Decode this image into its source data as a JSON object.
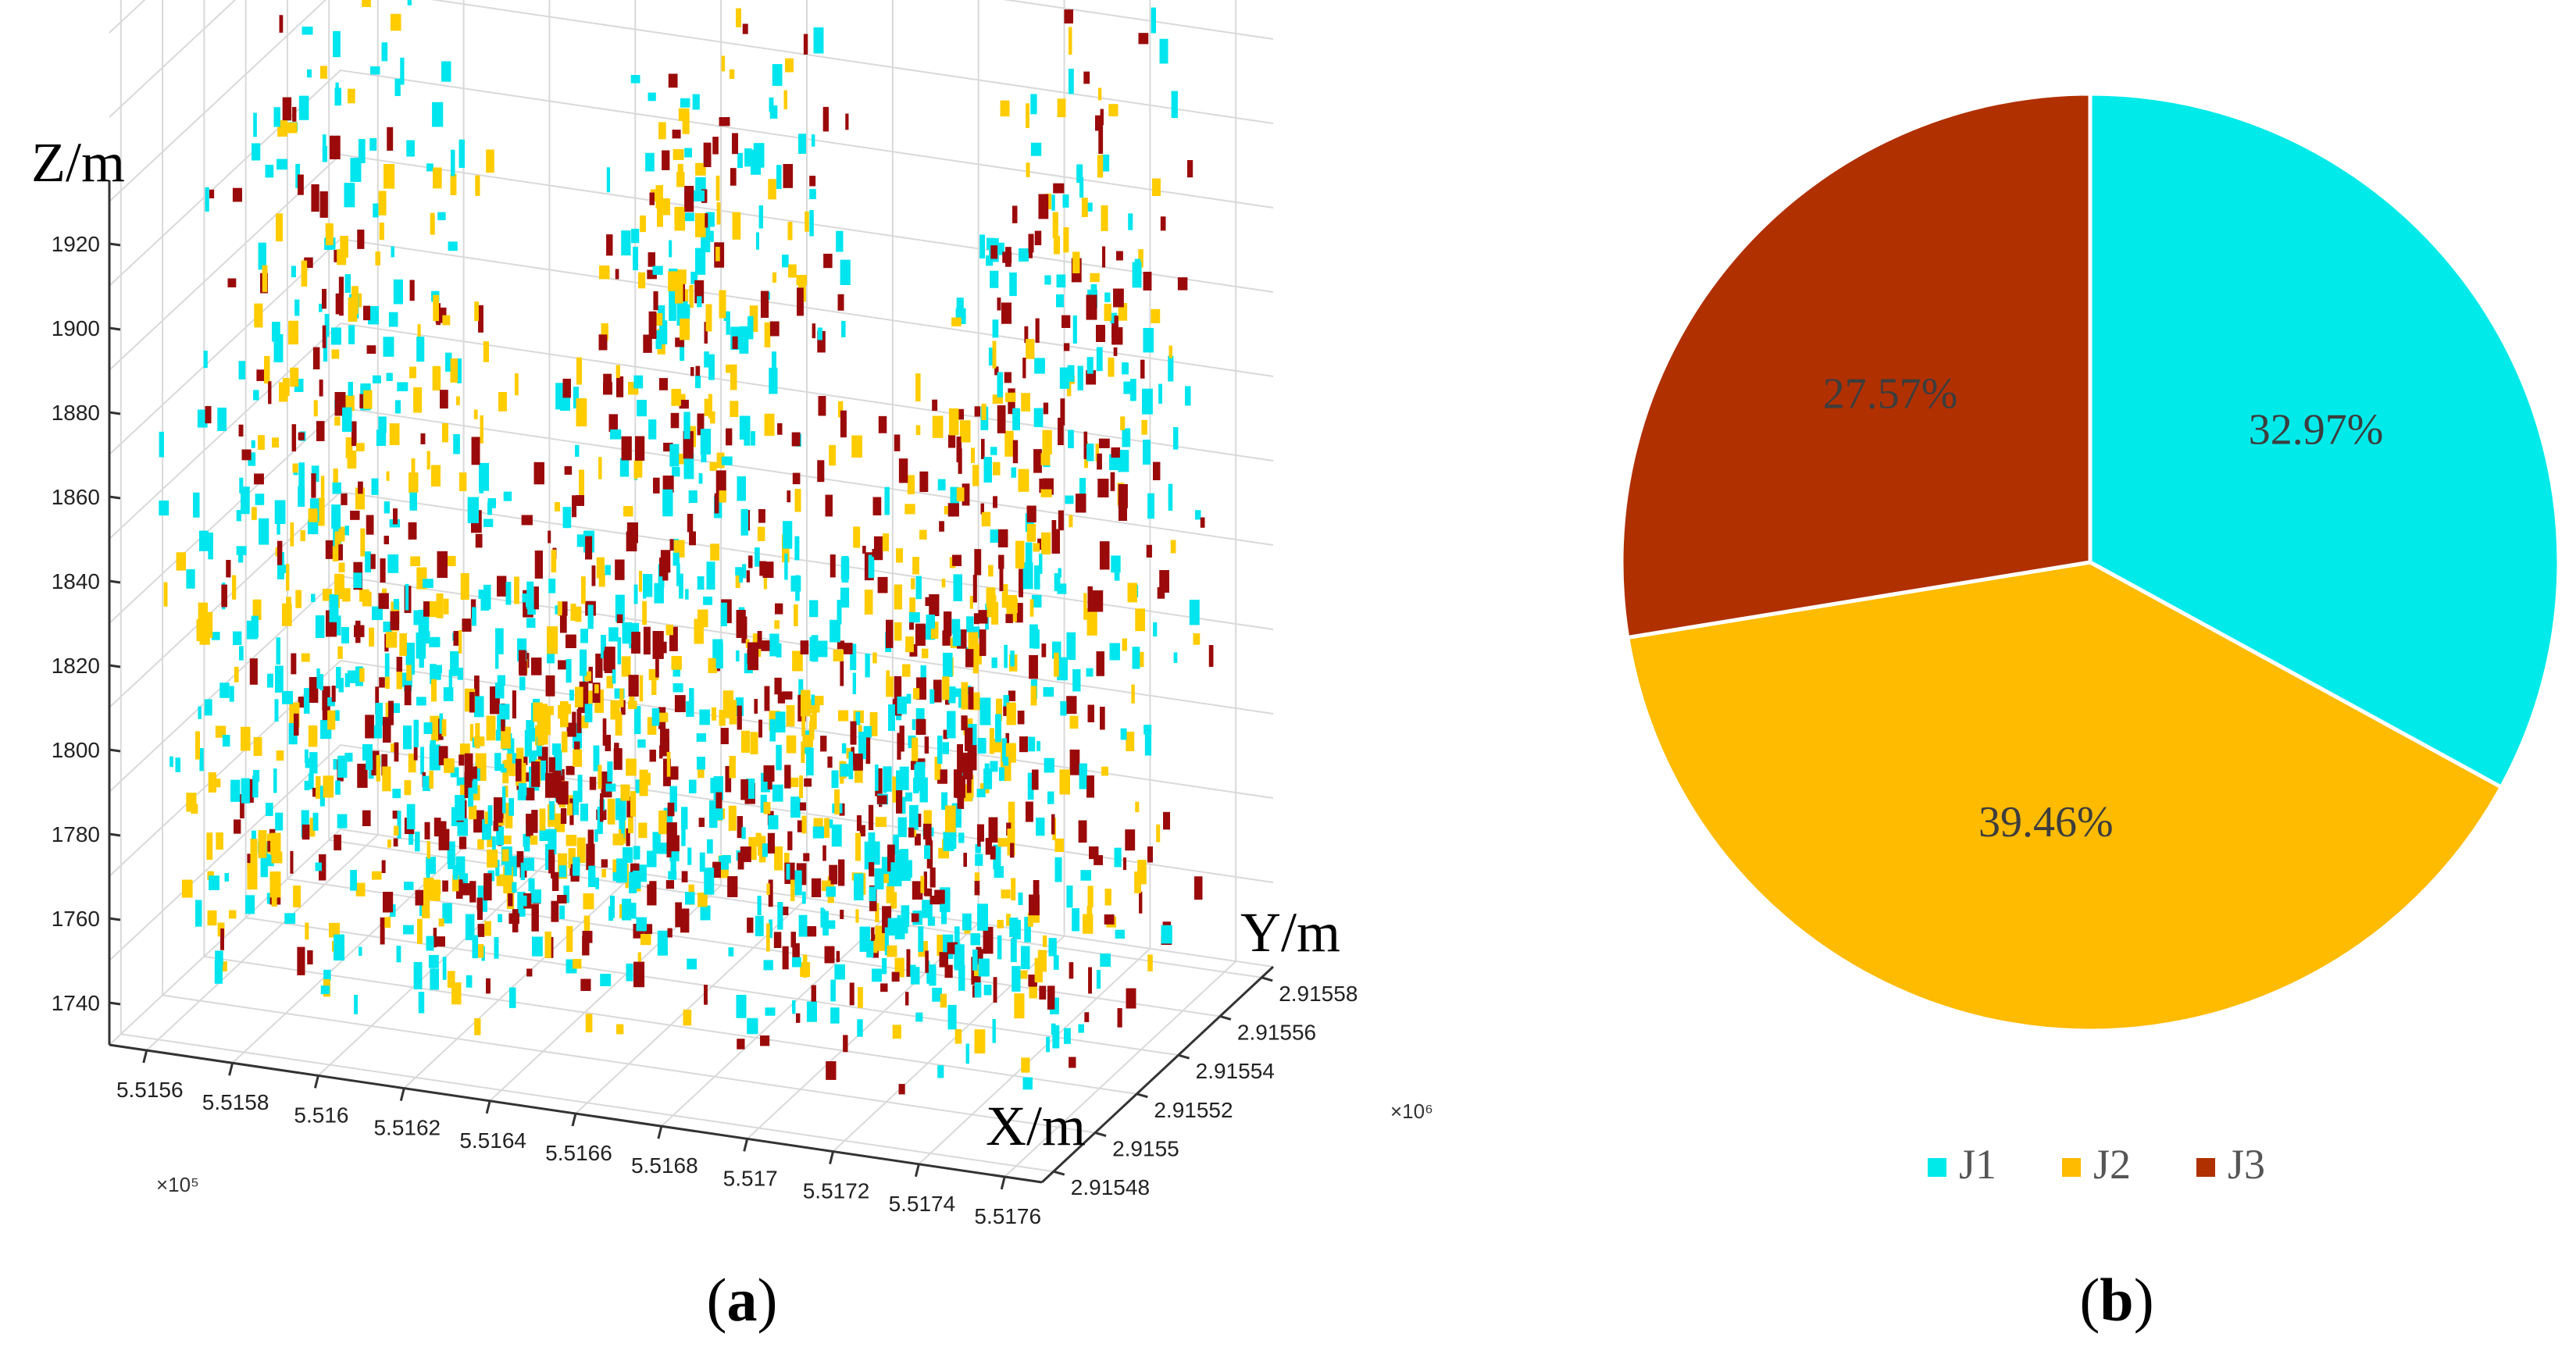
{
  "chart_data": [
    {
      "type": "scatter",
      "projection": "3d",
      "panel_label": "a",
      "xlabel": "X/m",
      "ylabel": "Y/m",
      "zlabel": "Z/m",
      "x_ticks": [
        "5.5156",
        "5.5158",
        "5.516",
        "5.5162",
        "5.5164",
        "5.5166",
        "5.5168",
        "5.517",
        "5.5172",
        "5.5174",
        "5.5176"
      ],
      "x_multiplier": "×10⁵",
      "y_ticks": [
        "2.91548",
        "2.9155",
        "2.91552",
        "2.91554",
        "2.91556",
        "2.91558"
      ],
      "y_multiplier": "×10⁶",
      "z_ticks": [
        "1740",
        "1760",
        "1780",
        "1800",
        "1820",
        "1840",
        "1860",
        "1880",
        "1900",
        "1920"
      ],
      "grid": true,
      "series_colors": {
        "J1": "#00e5ee",
        "J2": "#ffcc00",
        "J3": "#9b0a0a"
      }
    },
    {
      "type": "pie",
      "panel_label": "b",
      "slices": [
        {
          "label": "J1",
          "value": 32.97,
          "text": "32.97%",
          "color": "#00eaea"
        },
        {
          "label": "J2",
          "value": 39.46,
          "text": "39.46%",
          "color": "#ffbb00"
        },
        {
          "label": "J3",
          "value": 27.57,
          "text": "27.57%",
          "color": "#b03000"
        }
      ],
      "legend_position": "bottom"
    }
  ]
}
